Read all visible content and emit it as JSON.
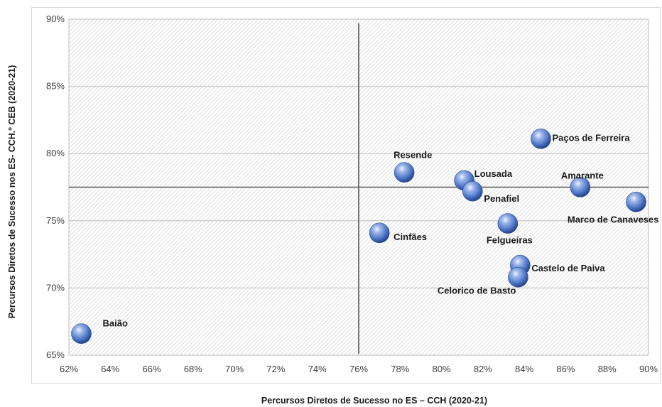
{
  "chart_data": {
    "type": "scatter",
    "title": "",
    "xlabel": "Percursos Diretos de Sucesso no ES – CCH (2020-21)",
    "ylabel": "Percursos Diretos de Sucesso nos ES- CCH.º CEB (2020-21)",
    "xlim": [
      0.62,
      0.9
    ],
    "ylim": [
      0.65,
      0.9
    ],
    "x_ticks": [
      "62%",
      "64%",
      "66%",
      "68%",
      "70%",
      "72%",
      "74%",
      "76%",
      "78%",
      "80%",
      "82%",
      "84%",
      "86%",
      "88%",
      "90%"
    ],
    "y_ticks": [
      "65%",
      "70%",
      "75%",
      "80%",
      "85%",
      "90%"
    ],
    "reference_lines": {
      "x": 0.76,
      "y": 0.775
    },
    "grid": "horizontal",
    "marker_color": "#4a72c4",
    "points": [
      {
        "name": "Baião",
        "x": 0.626,
        "y": 0.666
      },
      {
        "name": "Cinfães",
        "x": 0.77,
        "y": 0.741
      },
      {
        "name": "Resende",
        "x": 0.782,
        "y": 0.786
      },
      {
        "name": "Lousada",
        "x": 0.811,
        "y": 0.78
      },
      {
        "name": "Penafiel",
        "x": 0.815,
        "y": 0.772
      },
      {
        "name": "Felgueiras",
        "x": 0.832,
        "y": 0.748
      },
      {
        "name": "Castelo de Paiva",
        "x": 0.838,
        "y": 0.717
      },
      {
        "name": "Celorico de Basto",
        "x": 0.837,
        "y": 0.708
      },
      {
        "name": "Paços de Ferreira",
        "x": 0.848,
        "y": 0.811
      },
      {
        "name": "Amarante",
        "x": 0.867,
        "y": 0.775
      },
      {
        "name": "Marco de Canaveses",
        "x": 0.894,
        "y": 0.764
      }
    ]
  }
}
